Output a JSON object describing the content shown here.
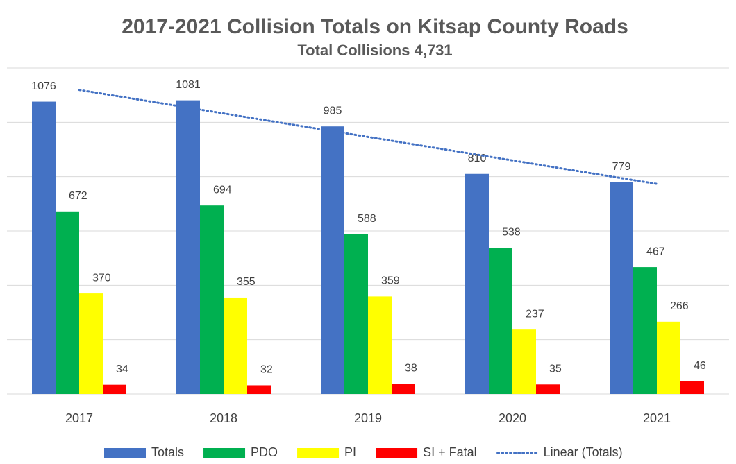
{
  "chart_data": {
    "type": "bar",
    "title": "2017-2021 Collision Totals on Kitsap County Roads",
    "subtitle": "Total Collisions 4,731",
    "categories": [
      "2017",
      "2018",
      "2019",
      "2020",
      "2021"
    ],
    "series": [
      {
        "name": "Totals",
        "color": "#4472c4",
        "values": [
          1076,
          1081,
          985,
          810,
          779
        ]
      },
      {
        "name": "PDO",
        "color": "#00b050",
        "values": [
          672,
          694,
          588,
          538,
          467
        ]
      },
      {
        "name": "PI",
        "color": "#ffff00",
        "values": [
          370,
          355,
          359,
          237,
          266
        ]
      },
      {
        "name": "SI + Fatal",
        "color": "#ff0000",
        "values": [
          34,
          32,
          38,
          35,
          46
        ]
      }
    ],
    "trendline": {
      "name": "Linear (Totals)",
      "color": "#4472c4"
    },
    "ylim": [
      0,
      1200
    ],
    "yticks": [
      0,
      200,
      400,
      600,
      800,
      1000,
      1200
    ],
    "grid": true,
    "legend": "bottom"
  }
}
